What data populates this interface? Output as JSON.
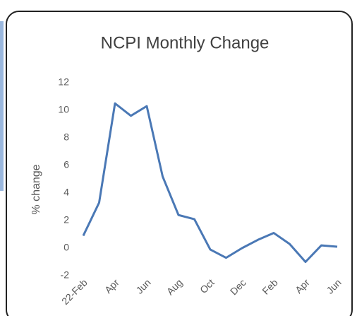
{
  "chart_data": {
    "type": "line",
    "title": "NCPI Monthly Change",
    "y_label": "% change",
    "categories": [
      "22-Feb",
      null,
      "Apr",
      null,
      "Jun",
      null,
      "Aug",
      null,
      "Oct",
      null,
      "Dec",
      null,
      "Feb",
      null,
      "Apr",
      null,
      "Jun"
    ],
    "series": [
      {
        "name": "NCPI",
        "color": "#4a78b5",
        "values": [
          0.9,
          3.3,
          10.5,
          9.6,
          10.3,
          5.2,
          2.4,
          2.1,
          -0.1,
          -0.7,
          0,
          0.6,
          1.1,
          0.3,
          -1.0,
          0.2,
          0.1
        ]
      }
    ],
    "ylim": [
      -2,
      12
    ],
    "yticks": [
      -2,
      0,
      2,
      4,
      6,
      8,
      10,
      12
    ],
    "grid": false,
    "legend": false
  }
}
